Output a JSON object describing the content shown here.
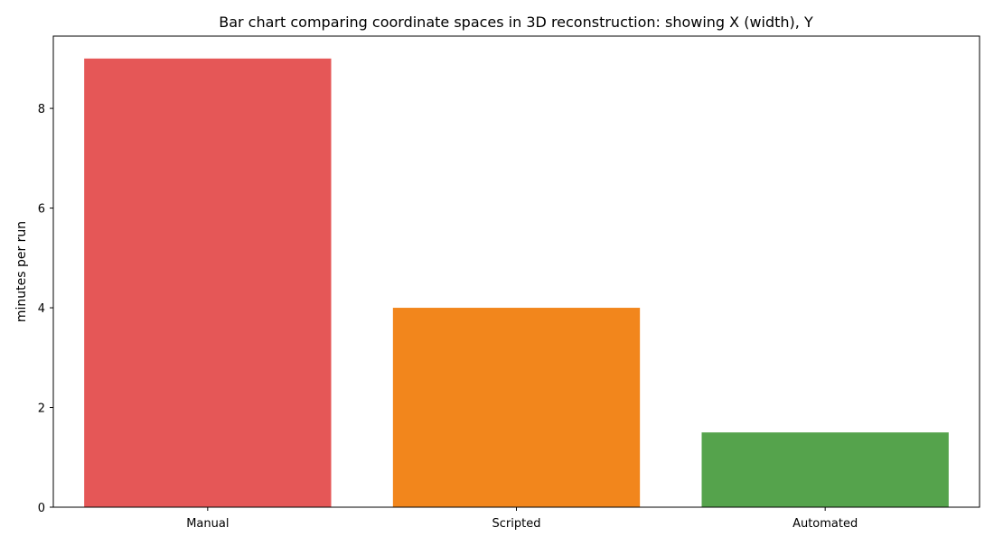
{
  "chart_data": {
    "type": "bar",
    "title": "Bar chart comparing coordinate spaces in 3D reconstruction: showing X (width), Y",
    "xlabel": "",
    "ylabel": "minutes per run",
    "categories": [
      "Manual",
      "Scripted",
      "Automated"
    ],
    "values": [
      9,
      4,
      1.5
    ],
    "colors": [
      "#e55757",
      "#f2861c",
      "#55a34c"
    ],
    "ylim": [
      0,
      9.45
    ],
    "yticks": [
      0,
      2,
      4,
      6,
      8
    ],
    "grid": false,
    "legend": "none"
  }
}
